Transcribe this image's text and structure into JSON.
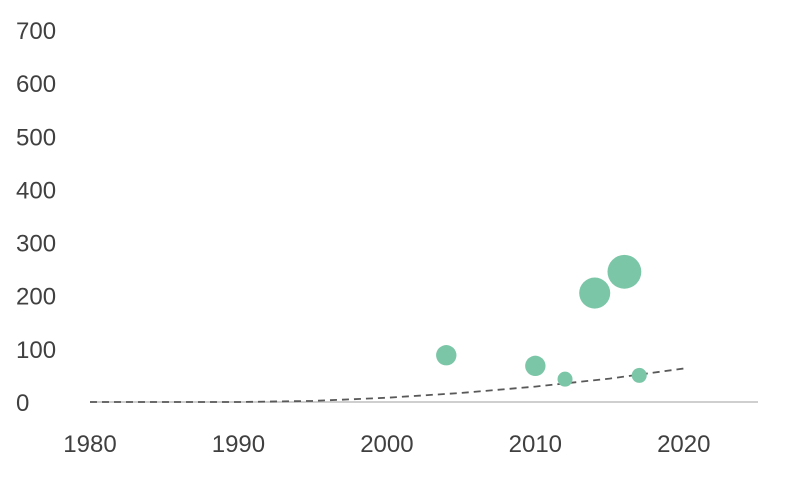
{
  "chart_data": {
    "type": "scatter",
    "xlim": [
      1980,
      2025
    ],
    "ylim": [
      0,
      700
    ],
    "x_ticks": [
      1980,
      1990,
      2000,
      2010,
      2020
    ],
    "y_ticks": [
      0,
      100,
      200,
      300,
      400,
      500,
      600,
      700
    ],
    "grid": false,
    "legend": "none",
    "colors": {
      "bubble": "#7cc6a8",
      "trend": "#595959",
      "axis": "#bfbfbf",
      "text": "#404040"
    },
    "series": [
      {
        "points": [
          {
            "x": 2004,
            "y": 88,
            "size": 2
          },
          {
            "x": 2010,
            "y": 68,
            "size": 2
          },
          {
            "x": 2012,
            "y": 43,
            "size": 1
          },
          {
            "x": 2014,
            "y": 205,
            "size": 5
          },
          {
            "x": 2016,
            "y": 245,
            "size": 6
          },
          {
            "x": 2017,
            "y": 50,
            "size": 1
          }
        ]
      }
    ],
    "trendline": {
      "style": "dashed",
      "points": [
        {
          "x": 1980,
          "y": 0
        },
        {
          "x": 1990,
          "y": 0
        },
        {
          "x": 1995,
          "y": 2
        },
        {
          "x": 2000,
          "y": 8
        },
        {
          "x": 2005,
          "y": 17
        },
        {
          "x": 2010,
          "y": 29
        },
        {
          "x": 2015,
          "y": 44
        },
        {
          "x": 2020,
          "y": 63
        }
      ]
    }
  }
}
